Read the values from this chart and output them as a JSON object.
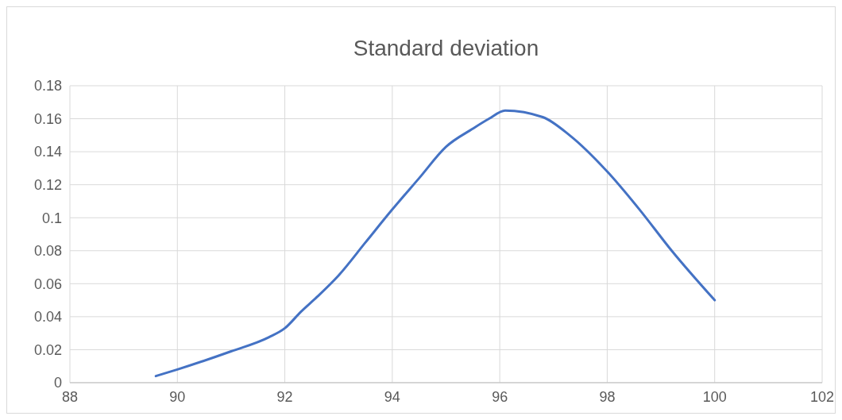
{
  "chart_data": {
    "type": "line",
    "title": "Standard deviation",
    "x": [
      89.6,
      90,
      91,
      91.7,
      92,
      92.3,
      92.6,
      93,
      93.5,
      94,
      94.5,
      95,
      95.5,
      95.8,
      96.1,
      96.8,
      97.3,
      98,
      98.6,
      99.2,
      100
    ],
    "series": [
      {
        "color": "#4472c4",
        "values": [
          0.004,
          0.008,
          0.019,
          0.0275,
          0.033,
          0.043,
          0.052,
          0.065,
          0.085,
          0.105,
          0.124,
          0.143,
          0.154,
          0.16,
          0.165,
          0.161,
          0.15,
          0.128,
          0.105,
          0.08,
          0.05
        ]
      }
    ],
    "xlim": [
      88,
      102
    ],
    "xticks": [
      88,
      90,
      92,
      94,
      96,
      98,
      100,
      102
    ],
    "ylim": [
      0,
      0.18
    ],
    "yticks": [
      {
        "value": 0,
        "label": "0"
      },
      {
        "value": 0.02,
        "label": "0.02"
      },
      {
        "value": 0.04,
        "label": "0.04"
      },
      {
        "value": 0.06,
        "label": "0.06"
      },
      {
        "value": 0.08,
        "label": "0.08"
      },
      {
        "value": 0.1,
        "label": "0.1"
      },
      {
        "value": 0.12,
        "label": "0.12"
      },
      {
        "value": 0.14,
        "label": "0.14"
      },
      {
        "value": 0.16,
        "label": "0.16"
      },
      {
        "value": 0.18,
        "label": "0.18"
      }
    ],
    "grid": true,
    "marker": "none",
    "line_style": "solid"
  }
}
